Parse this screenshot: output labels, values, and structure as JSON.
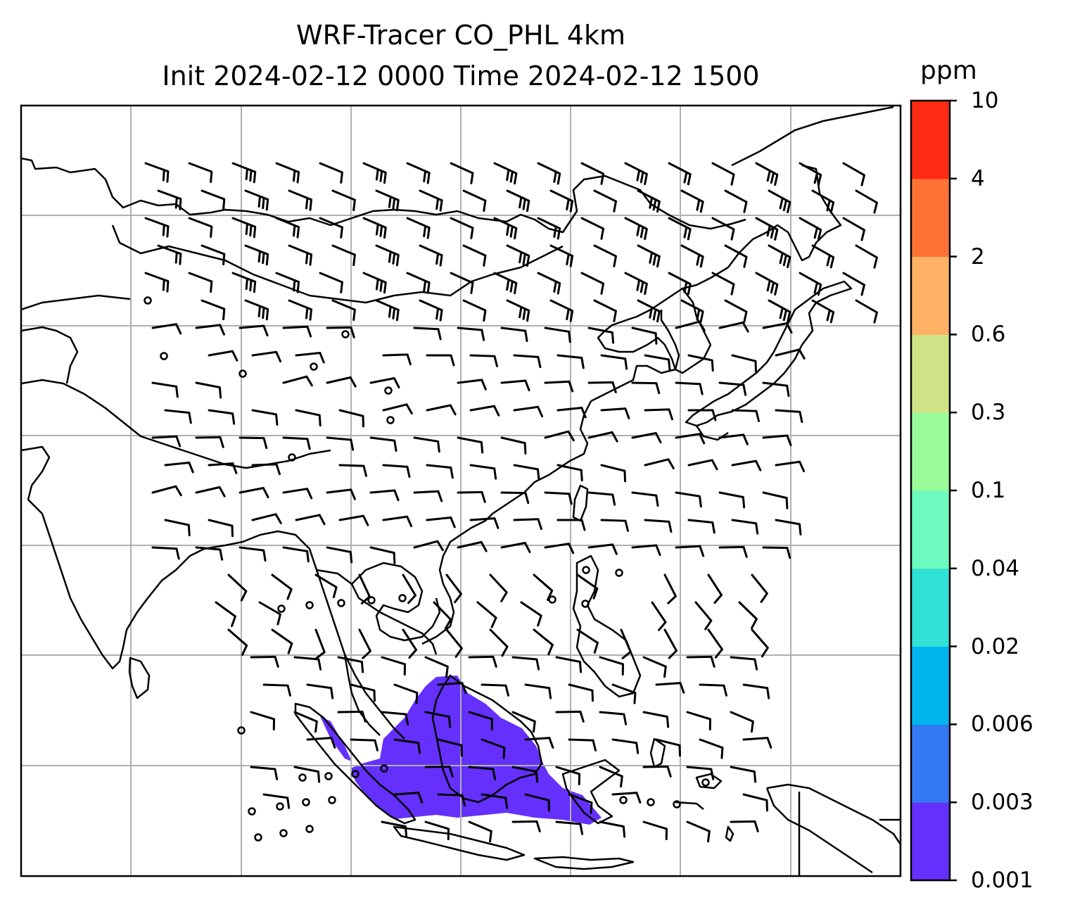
{
  "title": {
    "line1": "WRF-Tracer CO_PHL 4km",
    "line2": "Init 2024-02-12 0000 Time 2024-02-12 1500"
  },
  "colorbar": {
    "unit": "ppm",
    "levels": [
      "0.001",
      "0.003",
      "0.006",
      "0.02",
      "0.04",
      "0.1",
      "0.3",
      "0.6",
      "2",
      "4",
      "10"
    ],
    "colors": [
      "#6530fb",
      "#3478f4",
      "#02b4ec",
      "#30e1d6",
      "#6efbbf",
      "#98fb98",
      "#cfe386",
      "#fdb265",
      "#ff7235",
      "#ff2b13"
    ]
  },
  "map": {
    "gridlines": true,
    "tracer_color": "#6530fb",
    "region": "South / East Asia"
  }
}
